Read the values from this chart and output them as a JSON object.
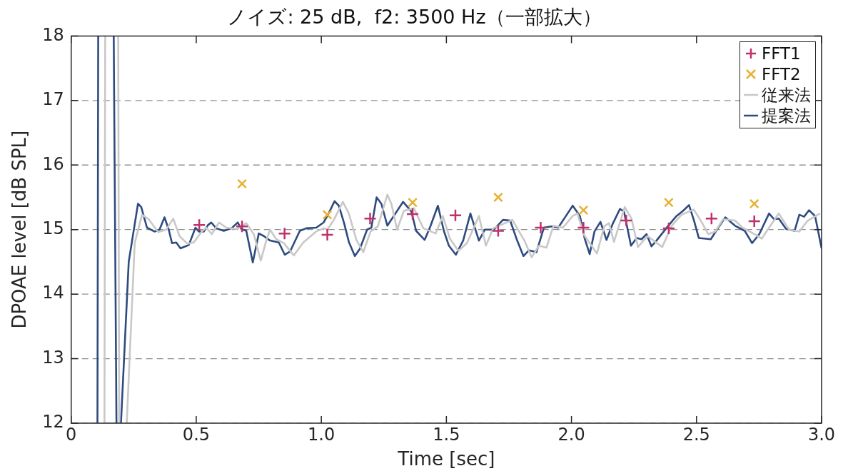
{
  "chart_data": {
    "type": "line",
    "title": "ノイズ: 25 dB,  f2: 3500 Hz（一部拡大）",
    "xlabel": "Time [sec]",
    "ylabel": "DPOAE level [dB SPL]",
    "xlim": [
      0,
      3
    ],
    "xticks": [
      0,
      {
        "value": 0.5,
        "label": "0.5"
      },
      {
        "value": 1,
        "label": "1.0"
      },
      {
        "value": 1.5,
        "label": "1.5"
      },
      {
        "value": 2,
        "label": "2.0"
      },
      {
        "value": 2.5,
        "label": "2.5"
      },
      {
        "value": 3,
        "label": "3.0"
      }
    ],
    "ylim": [
      12,
      18
    ],
    "yticks": [
      12,
      13,
      14,
      15,
      16,
      17,
      18
    ],
    "grid": "y",
    "legend": "top right",
    "series": [
      {
        "name": "FFT1",
        "type": "scatter",
        "marker": "plus",
        "color": "#c0306a",
        "x": [
          0.512,
          0.683,
          0.853,
          1.024,
          1.195,
          1.365,
          1.536,
          1.707,
          1.877,
          2.048,
          2.219,
          2.389,
          2.56,
          2.731
        ],
        "values": [
          15.07,
          15.05,
          14.94,
          14.92,
          15.17,
          15.24,
          15.22,
          14.98,
          15.03,
          15.03,
          15.14,
          15.02,
          15.17,
          15.13
        ]
      },
      {
        "name": "FFT2",
        "type": "scatter",
        "marker": "cross",
        "color": "#e8b030",
        "x": [
          0.683,
          1.024,
          1.365,
          1.707,
          2.048,
          2.389,
          2.731
        ],
        "values": [
          15.71,
          15.23,
          15.42,
          15.5,
          15.3,
          15.42,
          15.4
        ]
      },
      {
        "name": "従来法",
        "type": "line",
        "marker": "none",
        "color": "#c8c8c8",
        "x": [
          0.133,
          0.136,
          0.16,
          0.188,
          0.192,
          0.21,
          0.222,
          0.254,
          0.283,
          0.31,
          0.348,
          0.38,
          0.408,
          0.433,
          0.465,
          0.49,
          0.522,
          0.54,
          0.562,
          0.591,
          0.62,
          0.661,
          0.7,
          0.73,
          0.758,
          0.78,
          0.795,
          0.82,
          0.85,
          0.89,
          0.928,
          0.979,
          1.01,
          1.024,
          1.05,
          1.086,
          1.11,
          1.14,
          1.168,
          1.197,
          1.226,
          1.264,
          1.28,
          1.303,
          1.33,
          1.37,
          1.408,
          1.457,
          1.486,
          1.514,
          1.548,
          1.582,
          1.63,
          1.658,
          1.687,
          1.735,
          1.764,
          1.812,
          1.841,
          1.87,
          1.9,
          1.928,
          1.966,
          2.005,
          2.024,
          2.05,
          2.102,
          2.131,
          2.15,
          2.17,
          2.213,
          2.24,
          2.266,
          2.304,
          2.363,
          2.401,
          2.44,
          2.489,
          2.52,
          2.547,
          2.575,
          2.606,
          2.654,
          2.684,
          2.732,
          2.761,
          2.79,
          2.829,
          2.87,
          2.911,
          2.945,
          2.994
        ],
        "values": [
          12,
          18,
          null,
          18,
          12,
          null,
          12,
          14.79,
          15.23,
          15.16,
          14.96,
          15.0,
          15.17,
          14.9,
          14.78,
          14.8,
          14.97,
          15.03,
          14.93,
          15.11,
          15.03,
          15.01,
          15.1,
          14.93,
          14.52,
          14.83,
          15.0,
          14.85,
          14.79,
          14.6,
          14.8,
          14.97,
          15.02,
          15.0,
          15.15,
          15.43,
          15.25,
          14.84,
          14.65,
          14.97,
          15.05,
          15.54,
          15.4,
          15.0,
          15.29,
          15.33,
          15.02,
          14.94,
          15.21,
          14.86,
          14.67,
          14.79,
          15.21,
          14.75,
          15.02,
          15.1,
          15.15,
          14.83,
          14.57,
          14.75,
          14.72,
          15.06,
          15.03,
          15.21,
          15.25,
          14.92,
          14.63,
          15.05,
          15.1,
          14.81,
          15.35,
          15.17,
          14.73,
          14.9,
          14.73,
          15.06,
          15.23,
          15.31,
          15.12,
          14.93,
          14.97,
          15.16,
          15.14,
          15.03,
          14.93,
          14.86,
          15.03,
          15.25,
          15.0,
          14.97,
          15.14,
          15.25
        ]
      },
      {
        "name": "提案法",
        "type": "line",
        "marker": "none",
        "color": "#2e4b80",
        "x": [
          0.105,
          0.108,
          0.14,
          0.17,
          0.181,
          0.19,
          0.199,
          0.23,
          0.267,
          0.28,
          0.303,
          0.333,
          0.353,
          0.373,
          0.39,
          0.403,
          0.42,
          0.437,
          0.47,
          0.497,
          0.51,
          0.53,
          0.547,
          0.56,
          0.58,
          0.61,
          0.641,
          0.666,
          0.68,
          0.7,
          0.726,
          0.75,
          0.77,
          0.795,
          0.83,
          0.854,
          0.875,
          0.914,
          0.94,
          0.98,
          1.009,
          1.024,
          1.053,
          1.07,
          1.091,
          1.11,
          1.134,
          1.154,
          1.183,
          1.2,
          1.221,
          1.24,
          1.264,
          1.293,
          1.327,
          1.36,
          1.379,
          1.413,
          1.437,
          1.466,
          1.49,
          1.51,
          1.538,
          1.567,
          1.596,
          1.63,
          1.654,
          1.69,
          1.726,
          1.755,
          1.783,
          1.808,
          1.83,
          1.86,
          1.89,
          1.92,
          1.947,
          1.976,
          2.005,
          2.034,
          2.053,
          2.073,
          2.092,
          2.116,
          2.14,
          2.165,
          2.194,
          2.21,
          2.238,
          2.261,
          2.28,
          2.3,
          2.32,
          2.34,
          2.383,
          2.42,
          2.446,
          2.47,
          2.49,
          2.509,
          2.557,
          2.587,
          2.615,
          2.654,
          2.693,
          2.722,
          2.751,
          2.79,
          2.81,
          2.829,
          2.858,
          2.892,
          2.911,
          2.93,
          2.95,
          2.974,
          3.0
        ],
        "values": [
          12,
          18,
          null,
          18,
          12,
          null,
          12,
          14.5,
          15.4,
          15.35,
          15.03,
          14.97,
          15.0,
          15.19,
          15.0,
          14.79,
          14.8,
          14.71,
          14.76,
          15.03,
          14.97,
          14.97,
          15.07,
          15.11,
          15.02,
          14.98,
          15.02,
          15.11,
          15.01,
          14.98,
          14.49,
          14.94,
          14.9,
          14.83,
          14.8,
          14.61,
          14.66,
          14.98,
          15.02,
          15.03,
          15.11,
          15.21,
          15.44,
          15.37,
          15.1,
          14.81,
          14.59,
          14.7,
          15.0,
          15.03,
          15.5,
          15.4,
          15.06,
          15.23,
          15.43,
          15.28,
          14.98,
          14.84,
          15.06,
          15.37,
          14.98,
          14.75,
          14.61,
          14.83,
          15.25,
          14.83,
          15.0,
          15.0,
          15.15,
          15.14,
          14.83,
          14.59,
          14.68,
          14.65,
          15.03,
          15.05,
          15.03,
          15.2,
          15.37,
          15.21,
          14.86,
          14.62,
          14.97,
          15.12,
          14.84,
          15.09,
          15.32,
          15.28,
          14.75,
          14.87,
          14.85,
          14.93,
          14.74,
          14.83,
          15.04,
          15.21,
          15.29,
          15.38,
          15.14,
          14.87,
          14.85,
          15.03,
          15.19,
          15.06,
          14.98,
          14.79,
          14.93,
          15.25,
          15.16,
          15.17,
          15.01,
          14.98,
          15.23,
          15.2,
          15.3,
          15.21,
          14.71
        ]
      }
    ]
  }
}
